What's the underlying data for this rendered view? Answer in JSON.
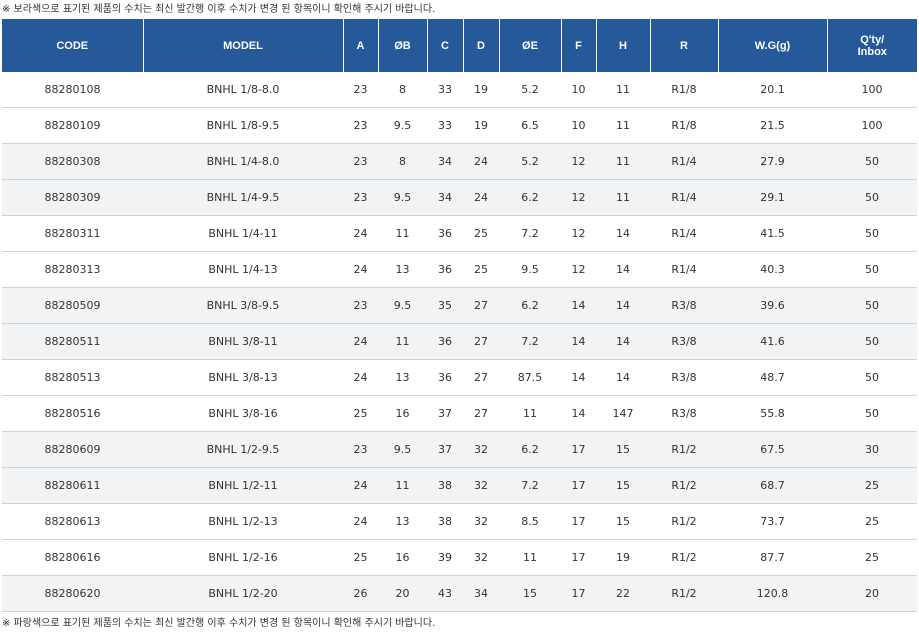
{
  "notes": {
    "top": "※ 보라색으로 표기된 제품의 수치는 최신 발간행 이후 수치가 변경 된 항목이니 확인해 주시기 바랍니다.",
    "bottom": "※ 파랑색으로 표기된 제품의 수치는 최신 발간행 이후 수치가 변경 된 항목이니 확인해 주시기 바랍니다."
  },
  "table": {
    "headers": [
      "CODE",
      "MODEL",
      "A",
      "ØB",
      "C",
      "D",
      "ØE",
      "F",
      "H",
      "R",
      "W.G(g)",
      "Q'ty/\nInbox"
    ],
    "rows": [
      [
        "88280108",
        "BNHL 1/8-8.0",
        "23",
        "8",
        "33",
        "19",
        "5.2",
        "10",
        "11",
        "R1/8",
        "20.1",
        "100"
      ],
      [
        "88280109",
        "BNHL 1/8-9.5",
        "23",
        "9.5",
        "33",
        "19",
        "6.5",
        "10",
        "11",
        "R1/8",
        "21.5",
        "100"
      ],
      [
        "88280308",
        "BNHL 1/4-8.0",
        "23",
        "8",
        "34",
        "24",
        "5.2",
        "12",
        "11",
        "R1/4",
        "27.9",
        "50"
      ],
      [
        "88280309",
        "BNHL 1/4-9.5",
        "23",
        "9.5",
        "34",
        "24",
        "6.2",
        "12",
        "11",
        "R1/4",
        "29.1",
        "50"
      ],
      [
        "88280311",
        "BNHL 1/4-11",
        "24",
        "11",
        "36",
        "25",
        "7.2",
        "12",
        "14",
        "R1/4",
        "41.5",
        "50"
      ],
      [
        "88280313",
        "BNHL 1/4-13",
        "24",
        "13",
        "36",
        "25",
        "9.5",
        "12",
        "14",
        "R1/4",
        "40.3",
        "50"
      ],
      [
        "88280509",
        "BNHL 3/8-9.5",
        "23",
        "9.5",
        "35",
        "27",
        "6.2",
        "14",
        "14",
        "R3/8",
        "39.6",
        "50"
      ],
      [
        "88280511",
        "BNHL 3/8-11",
        "24",
        "11",
        "36",
        "27",
        "7.2",
        "14",
        "14",
        "R3/8",
        "41.6",
        "50"
      ],
      [
        "88280513",
        "BNHL 3/8-13",
        "24",
        "13",
        "36",
        "27",
        "87.5",
        "14",
        "14",
        "R3/8",
        "48.7",
        "50"
      ],
      [
        "88280516",
        "BNHL 3/8-16",
        "25",
        "16",
        "37",
        "27",
        "11",
        "14",
        "147",
        "R3/8",
        "55.8",
        "50"
      ],
      [
        "88280609",
        "BNHL 1/2-9.5",
        "23",
        "9.5",
        "37",
        "32",
        "6.2",
        "17",
        "15",
        "R1/2",
        "67.5",
        "30"
      ],
      [
        "88280611",
        "BNHL 1/2-11",
        "24",
        "11",
        "38",
        "32",
        "7.2",
        "17",
        "15",
        "R1/2",
        "68.7",
        "25"
      ],
      [
        "88280613",
        "BNHL 1/2-13",
        "24",
        "13",
        "38",
        "32",
        "8.5",
        "17",
        "15",
        "R1/2",
        "73.7",
        "25"
      ],
      [
        "88280616",
        "BNHL 1/2-16",
        "25",
        "16",
        "39",
        "32",
        "11",
        "17",
        "19",
        "R1/2",
        "87.7",
        "25"
      ],
      [
        "88280620",
        "BNHL 1/2-20",
        "26",
        "20",
        "43",
        "34",
        "15",
        "17",
        "22",
        "R1/2",
        "120.8",
        "20"
      ]
    ]
  },
  "colors": {
    "header_bg": "#25599a",
    "header_text": "#ffffff",
    "row_shade": "#f2f3f5",
    "row_divider": "#cfd4da",
    "cell_text": "#333333"
  }
}
